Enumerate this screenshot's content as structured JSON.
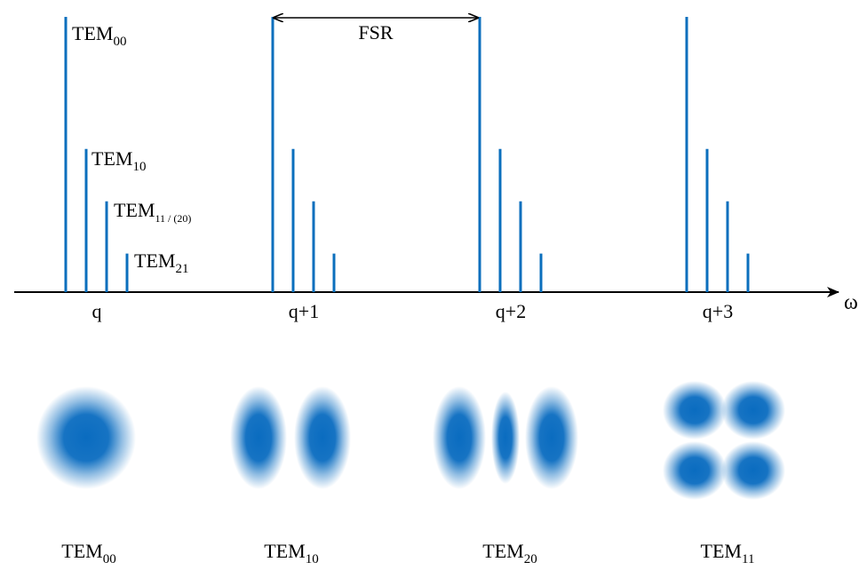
{
  "spectrum": {
    "axis_label": "ω",
    "fsr_label": "FSR",
    "orders": [
      "q",
      "q+1",
      "q+2",
      "q+3"
    ],
    "mode_labels": [
      {
        "base": "TEM",
        "sub": "00"
      },
      {
        "base": "TEM",
        "sub": "10"
      },
      {
        "base": "TEM",
        "sub": "11 / (20)"
      },
      {
        "base": "TEM",
        "sub": "21"
      }
    ],
    "relative_heights": [
      1.0,
      0.52,
      0.33,
      0.14
    ]
  },
  "profiles": [
    {
      "base": "TEM",
      "sub": "00"
    },
    {
      "base": "TEM",
      "sub": "10"
    },
    {
      "base": "TEM",
      "sub": "20"
    },
    {
      "base": "TEM",
      "sub": "11"
    }
  ],
  "colors": {
    "line": "#0b6fbd",
    "beam": "#0a6cc0"
  }
}
